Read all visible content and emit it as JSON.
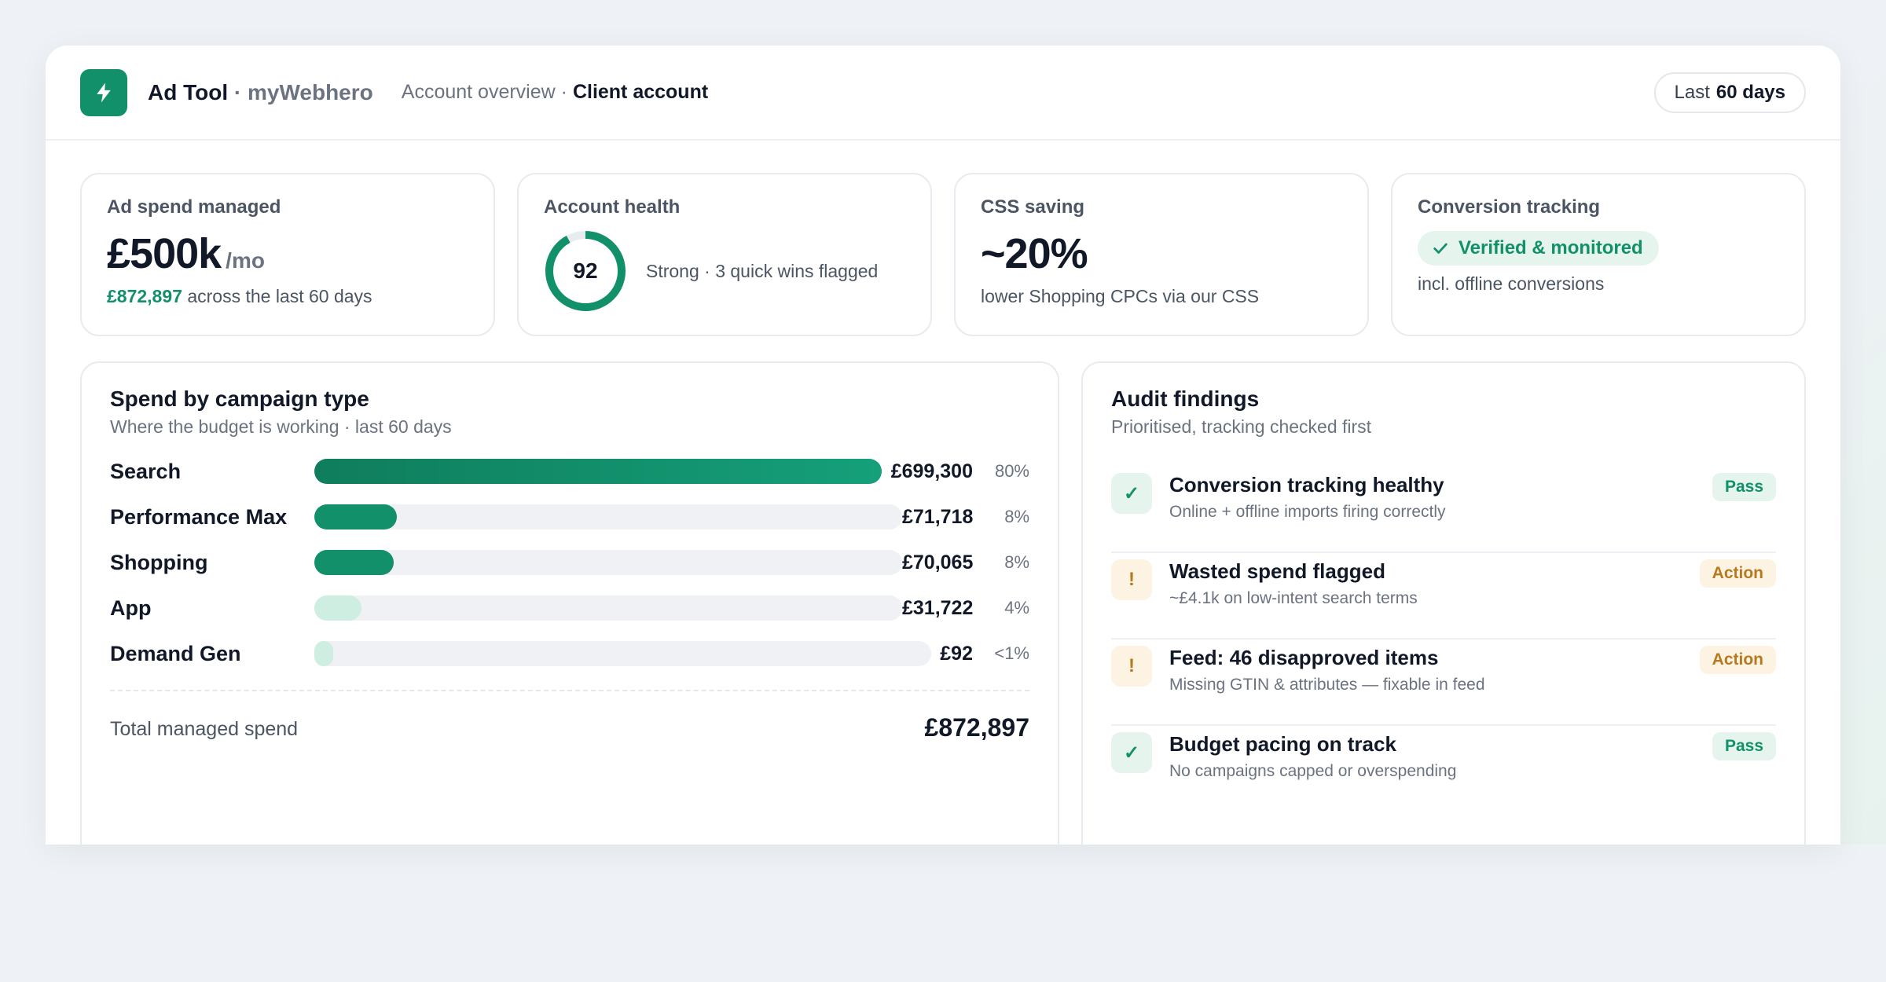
{
  "header": {
    "app_name": "Ad Tool",
    "separator": "·",
    "client_name": "myWebhero",
    "breadcrumb_parent": "Account overview",
    "breadcrumb_sep": "·",
    "breadcrumb_current": "Client account",
    "range_prefix": "Last",
    "range_value": "60 days",
    "icon": "lightning-bolt-icon",
    "brand_color": "#12906a"
  },
  "kpis": {
    "spend": {
      "label": "Ad spend managed",
      "value": "£500k",
      "unit": "/mo",
      "sub_highlight": "£872,897",
      "sub_text": " across the last 60 days"
    },
    "health": {
      "label": "Account health",
      "score": "92",
      "score_fraction": 0.92,
      "text": "Strong · 3 quick wins flagged"
    },
    "css": {
      "label": "CSS saving",
      "value": "~20%",
      "sub_text": "lower Shopping CPCs via our CSS"
    },
    "tracking": {
      "label": "Conversion tracking",
      "badge": "Verified & monitored",
      "badge_icon": "check-icon",
      "sub_text": "incl. offline conversions"
    }
  },
  "spend_panel": {
    "title": "Spend by campaign type",
    "subtitle": "Where the budget is working · last 60 days",
    "rows": [
      {
        "label": "Search",
        "value": "£699,300",
        "pct": "80%",
        "fill": 1.0,
        "color": "#12906a"
      },
      {
        "label": "Performance Max",
        "value": "£71,718",
        "pct": "8%",
        "fill": 0.14,
        "color": "#12906a"
      },
      {
        "label": "Shopping",
        "value": "£70,065",
        "pct": "8%",
        "fill": 0.135,
        "color": "#12906a"
      },
      {
        "label": "App",
        "value": "£31,722",
        "pct": "4%",
        "fill": 0.08,
        "color": "#cdeee1"
      },
      {
        "label": "Demand Gen",
        "value": "£92",
        "pct": "<1%",
        "fill": 0.03,
        "color": "#cdeee1"
      }
    ],
    "total_label": "Total managed spend",
    "total_value": "£872,897"
  },
  "audit_panel": {
    "title": "Audit findings",
    "subtitle": "Prioritised, tracking checked first",
    "items": [
      {
        "title": "Conversion tracking healthy",
        "sub": "Online + offline imports firing correctly",
        "status": "pass",
        "badge": "Pass",
        "icon": "✓"
      },
      {
        "title": "Wasted spend flagged",
        "sub": "~£4.1k on low-intent search terms",
        "status": "action",
        "badge": "Action",
        "icon": "!"
      },
      {
        "title": "Feed: 46 disapproved items",
        "sub": "Missing GTIN & attributes — fixable in feed",
        "status": "action",
        "badge": "Action",
        "icon": "!"
      },
      {
        "title": "Budget pacing on track",
        "sub": "No campaigns capped or overspending",
        "status": "pass",
        "badge": "Pass",
        "icon": "✓"
      }
    ]
  }
}
